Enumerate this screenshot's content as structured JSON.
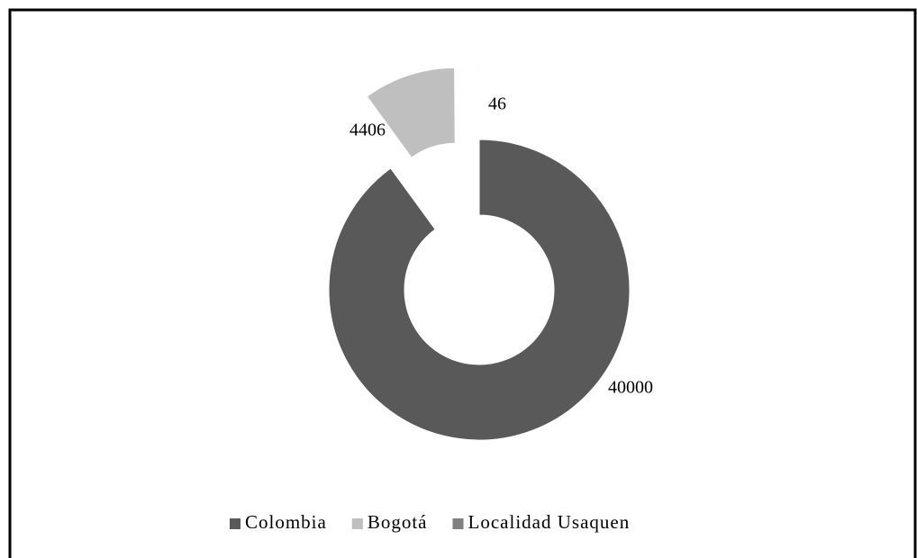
{
  "chart_data": {
    "type": "donut",
    "categories": [
      "Colombia",
      "Bogotá",
      "Localidad Usaquen"
    ],
    "values": [
      40000,
      4406,
      46
    ],
    "colors": [
      "#595959",
      "#bfbfbf",
      "#7f7f7f"
    ],
    "legend": "bottom"
  }
}
